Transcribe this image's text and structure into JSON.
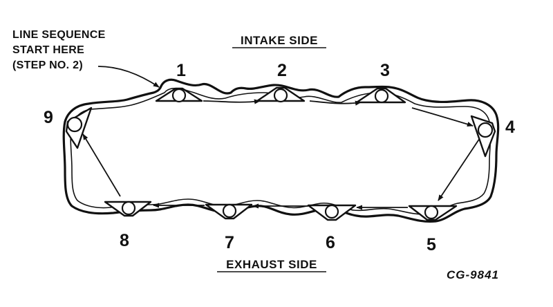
{
  "callout": {
    "line1": "LINE SEQUENCE",
    "line2": "START HERE",
    "line3": "(STEP NO. 2)"
  },
  "sides": {
    "intake": "INTAKE SIDE",
    "exhaust": "EXHAUST SIDE"
  },
  "figure_code": "CG-9841",
  "bolts": [
    {
      "label": "1",
      "side": "intake"
    },
    {
      "label": "2",
      "side": "intake"
    },
    {
      "label": "3",
      "side": "intake"
    },
    {
      "label": "4",
      "side": "right-end"
    },
    {
      "label": "5",
      "side": "exhaust"
    },
    {
      "label": "6",
      "side": "exhaust"
    },
    {
      "label": "7",
      "side": "exhaust"
    },
    {
      "label": "8",
      "side": "exhaust"
    },
    {
      "label": "9",
      "side": "left-end"
    }
  ]
}
